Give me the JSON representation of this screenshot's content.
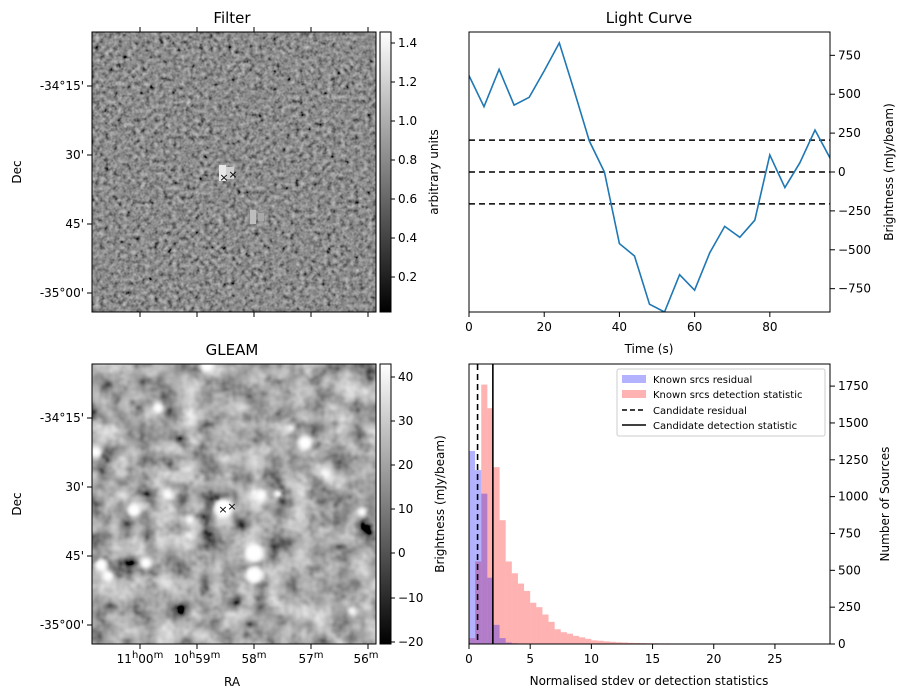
{
  "panels": {
    "filter": {
      "title": "Filter",
      "ylabel": "Dec",
      "colorbar_label": "arbitrary units",
      "colorbar_ticks": [
        "0.2",
        "0.4",
        "0.6",
        "0.8",
        "1.0",
        "1.2",
        "1.4"
      ],
      "dec_ticks": [
        "-34°15'",
        "30'",
        "45'",
        "-35°00'"
      ]
    },
    "gleam": {
      "title": "GLEAM",
      "ylabel": "Dec",
      "xlabel": "RA",
      "colorbar_label": "Brightness (mJy/beam)",
      "colorbar_ticks": [
        "−20",
        "−10",
        "0",
        "10",
        "20",
        "30",
        "40"
      ],
      "dec_ticks": [
        "-34°15'",
        "30'",
        "45'",
        "-35°00'"
      ],
      "ra_ticks": [
        {
          "h": "11",
          "hs": "h",
          "m": "00",
          "ms": "m"
        },
        {
          "h": "10",
          "hs": "h",
          "m": "59",
          "ms": "m"
        },
        {
          "h": "",
          "hs": "",
          "m": "58",
          "ms": "m"
        },
        {
          "h": "",
          "hs": "",
          "m": "57",
          "ms": "m"
        },
        {
          "h": "",
          "hs": "",
          "m": "56",
          "ms": "m"
        }
      ]
    }
  },
  "chart_data": [
    {
      "type": "line",
      "title": "Light Curve",
      "xlabel": "Time (s)",
      "ylabel": "Brightness (mJy/beam)",
      "xlim": [
        0,
        96
      ],
      "ylim": [
        -900,
        900
      ],
      "x_ticks": [
        0,
        20,
        40,
        60,
        80
      ],
      "y_ticks": [
        -750,
        -500,
        -250,
        0,
        250,
        500,
        750
      ],
      "color": "#1f77b4",
      "x": [
        0,
        4,
        8,
        12,
        16,
        20,
        24,
        28,
        32,
        36,
        40,
        44,
        48,
        52,
        56,
        60,
        64,
        68,
        72,
        76,
        80,
        84,
        88,
        92,
        96
      ],
      "y": [
        620,
        420,
        660,
        430,
        480,
        650,
        830,
        520,
        200,
        0,
        -460,
        -540,
        -850,
        -900,
        -660,
        -760,
        -520,
        -350,
        -420,
        -310,
        110,
        -100,
        60,
        270,
        90
      ],
      "hlines": [
        {
          "y": 205,
          "style": "dashed"
        },
        {
          "y": 0,
          "style": "dashed"
        },
        {
          "y": -205,
          "style": "dashed"
        }
      ]
    },
    {
      "type": "bar",
      "xlabel": "Normalised stdev or detection statistics",
      "ylabel": "Number of Sources",
      "xlim": [
        0,
        29.5
      ],
      "ylim": [
        0,
        1900
      ],
      "x_ticks": [
        0,
        5,
        10,
        15,
        20,
        25
      ],
      "y_ticks": [
        0,
        250,
        500,
        750,
        1000,
        1250,
        1500,
        1750
      ],
      "bin_width": 0.5,
      "legend_position": "top-right",
      "series": [
        {
          "name": "Known srcs residual",
          "color": "#0000ff",
          "opacity": 0.3,
          "x_start": 0,
          "values": [
            1310,
            1180,
            1020,
            450,
            130,
            40,
            10,
            5
          ]
        },
        {
          "name": "Known srcs detection statistic",
          "color": "#ff0000",
          "opacity": 0.3,
          "x_start": 0,
          "values": [
            40,
            560,
            1760,
            1600,
            1200,
            840,
            560,
            480,
            410,
            360,
            280,
            250,
            200,
            150,
            100,
            80,
            70,
            55,
            45,
            35,
            25,
            22,
            18,
            15,
            12,
            10,
            8,
            7,
            6,
            5,
            5,
            4,
            4,
            3,
            3,
            2,
            2,
            2,
            1,
            1,
            1,
            1,
            1,
            1,
            1,
            1
          ]
        }
      ],
      "vlines": [
        {
          "name": "Candidate residual",
          "x": 0.7,
          "style": "dashed"
        },
        {
          "name": "Candidate detection statistic",
          "x": 1.95,
          "style": "solid"
        }
      ]
    }
  ]
}
